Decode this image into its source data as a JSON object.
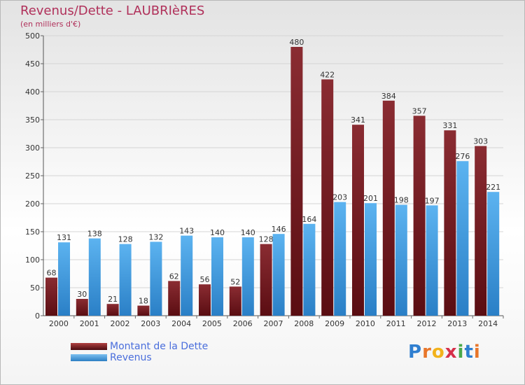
{
  "chart_data": {
    "type": "bar",
    "title": "Revenus/Dette - LAUBRIèRES",
    "subtitle": "(en milliers d'€)",
    "categories": [
      "2000",
      "2001",
      "2002",
      "2003",
      "2004",
      "2005",
      "2006",
      "2007",
      "2008",
      "2009",
      "2010",
      "2011",
      "2012",
      "2013",
      "2014"
    ],
    "series": [
      {
        "name": "Montant de la Dette",
        "color": "#7a1c22",
        "values": [
          68,
          30,
          21,
          18,
          62,
          56,
          52,
          128,
          480,
          422,
          341,
          384,
          357,
          331,
          303
        ]
      },
      {
        "name": "Revenus",
        "color": "#3f9ae0",
        "values": [
          131,
          138,
          128,
          132,
          143,
          140,
          140,
          146,
          164,
          203,
          201,
          198,
          197,
          276,
          221
        ]
      }
    ],
    "ylim": [
      0,
      500
    ],
    "yticks": [
      0,
      50,
      100,
      150,
      200,
      250,
      300,
      350,
      400,
      450,
      500
    ],
    "grid": true,
    "legend_position": "bottom-left"
  },
  "brand": {
    "letters": [
      "P",
      "r",
      "o",
      "x",
      "i",
      "t",
      "i"
    ]
  }
}
